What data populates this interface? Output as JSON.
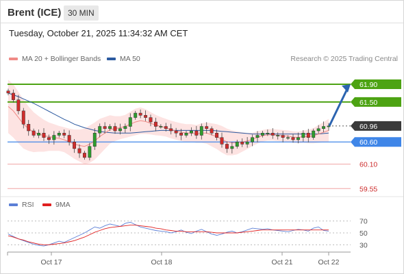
{
  "header": {
    "instrument": "Brent (ICE)",
    "interval": "30 MIN"
  },
  "timestamp": "Tuesday, October 21, 2025 11:34:32 AM CET",
  "legend": {
    "ma20_label": "MA 20 + Bollinger Bands",
    "ma50_label": "MA 50",
    "source": "Research © 2025 Trading Central",
    "rsi_label": "RSI",
    "ma9_label": "9MA"
  },
  "colors": {
    "ma20": "#f08a86",
    "bollinger_fill": "#fde3e2",
    "ma50": "#2c5aa0",
    "resistance": "#4da313",
    "pivot": "#3f86e8",
    "support": "#f0a3a3",
    "support_text": "#cc2b2b",
    "current": "#3a3a3a",
    "rsi": "#5b7fd6",
    "rsi_ma": "#e02020",
    "candle_up": "#2e9d2e",
    "candle_down": "#d12c2c",
    "arrow": "#2c64b0"
  },
  "chart_data": [
    {
      "type": "line",
      "title": "Brent (ICE) 30 MIN",
      "x_axis_labels": [
        "Oct 17",
        "Oct 18",
        "Oct 21",
        "Oct 22"
      ],
      "ylim": [
        59.4,
        62.1
      ],
      "levels": [
        {
          "name": "resistance-2",
          "value": 61.9,
          "label": "61.90",
          "kind": "resistance"
        },
        {
          "name": "resistance-1",
          "value": 61.5,
          "label": "61.50",
          "kind": "resistance"
        },
        {
          "name": "current-price",
          "value": 60.96,
          "label": "60.96",
          "kind": "current"
        },
        {
          "name": "pivot",
          "value": 60.6,
          "label": "60.60",
          "kind": "pivot"
        },
        {
          "name": "support-1",
          "value": 60.1,
          "label": "60.10",
          "kind": "support"
        },
        {
          "name": "support-2",
          "value": 59.55,
          "label": "59.55",
          "kind": "support"
        }
      ],
      "price_path": [
        61.7,
        61.55,
        61.3,
        61.0,
        60.85,
        60.75,
        60.8,
        60.7,
        60.65,
        60.75,
        60.8,
        60.75,
        60.6,
        60.45,
        60.35,
        60.25,
        60.5,
        60.8,
        60.95,
        60.9,
        60.95,
        60.85,
        60.9,
        60.95,
        61.15,
        61.25,
        61.2,
        61.15,
        61.05,
        60.95,
        60.95,
        60.9,
        60.85,
        60.8,
        60.75,
        60.8,
        60.85,
        60.75,
        60.95,
        60.9,
        60.8,
        60.7,
        60.55,
        60.45,
        60.5,
        60.6,
        60.55,
        60.6,
        60.7,
        60.75,
        60.8,
        60.8,
        60.75,
        60.75,
        60.7,
        60.7,
        60.65,
        60.7,
        60.8,
        60.7,
        60.85,
        60.9,
        60.95,
        60.96
      ],
      "ma20": [
        61.4,
        61.3,
        61.15,
        61.0,
        60.9,
        60.82,
        60.78,
        60.74,
        60.72,
        60.7,
        60.68,
        60.65,
        60.6,
        60.55,
        60.52,
        60.5,
        60.55,
        60.62,
        60.72,
        60.8,
        60.88,
        60.9,
        60.92,
        60.95,
        61.0,
        61.05,
        61.08,
        61.06,
        61.02,
        60.98,
        60.95,
        60.92,
        60.88,
        60.85,
        60.82,
        60.8,
        60.8,
        60.78,
        60.8,
        60.8,
        60.76,
        60.72,
        60.66,
        60.6,
        60.58,
        60.58,
        60.6,
        60.62,
        60.66,
        60.7,
        60.74,
        60.76,
        60.76,
        60.75,
        60.74,
        60.73,
        60.71,
        60.7,
        60.72,
        60.72,
        60.74,
        60.78,
        60.82,
        60.86
      ],
      "ma50": [
        61.7,
        61.66,
        61.62,
        61.57,
        61.52,
        61.47,
        61.41,
        61.35,
        61.29,
        61.23,
        61.17,
        61.11,
        61.06,
        61.0,
        60.96,
        60.92,
        60.89,
        60.86,
        60.84,
        60.82,
        60.81,
        60.8,
        60.8,
        60.8,
        60.8,
        60.81,
        60.82,
        60.83,
        60.84,
        60.85,
        60.86,
        60.86,
        60.86,
        60.86,
        60.86,
        60.86,
        60.86,
        60.86,
        60.86,
        60.86,
        60.86,
        60.85,
        60.84,
        60.83,
        60.82,
        60.81,
        60.8,
        60.79,
        60.78,
        60.78,
        60.78,
        60.78,
        60.78,
        60.78,
        60.78,
        60.78,
        60.78,
        60.78,
        60.78,
        60.78,
        60.78,
        60.78,
        60.79,
        60.8
      ],
      "bollinger_width": [
        0.6,
        0.6,
        0.58,
        0.55,
        0.5,
        0.45,
        0.4,
        0.36,
        0.32,
        0.3,
        0.28,
        0.28,
        0.3,
        0.33,
        0.36,
        0.4,
        0.42,
        0.42,
        0.4,
        0.36,
        0.32,
        0.28,
        0.26,
        0.26,
        0.28,
        0.3,
        0.3,
        0.28,
        0.25,
        0.23,
        0.21,
        0.2,
        0.2,
        0.2,
        0.2,
        0.2,
        0.2,
        0.2,
        0.22,
        0.24,
        0.26,
        0.28,
        0.3,
        0.3,
        0.28,
        0.26,
        0.22,
        0.18,
        0.15,
        0.14,
        0.13,
        0.13,
        0.13,
        0.13,
        0.13,
        0.13,
        0.13,
        0.13,
        0.14,
        0.15,
        0.17,
        0.2,
        0.23,
        0.26
      ]
    },
    {
      "type": "line",
      "title": "RSI",
      "ylim": [
        20,
        80
      ],
      "y_ticks": [
        70,
        50,
        30
      ],
      "series": [
        {
          "name": "RSI",
          "values": [
            48,
            44,
            40,
            37,
            34,
            31,
            29,
            28,
            30,
            33,
            36,
            34,
            38,
            42,
            46,
            50,
            55,
            60,
            58,
            62,
            65,
            63,
            61,
            66,
            68,
            64,
            60,
            58,
            56,
            54,
            53,
            52,
            50,
            52,
            55,
            51,
            49,
            53,
            56,
            52,
            48,
            46,
            48,
            51,
            53,
            50,
            52,
            55,
            58,
            57,
            56,
            57,
            55,
            54,
            53,
            52,
            54,
            56,
            55,
            53,
            58,
            60,
            54,
            53
          ]
        },
        {
          "name": "9MA",
          "values": [
            45,
            43,
            40,
            38,
            35,
            33,
            31,
            30,
            30,
            31,
            32,
            33,
            35,
            37,
            40,
            43,
            47,
            51,
            54,
            57,
            59,
            60,
            61,
            62,
            63,
            63,
            62,
            61,
            60,
            58,
            57,
            55,
            54,
            53,
            53,
            52,
            52,
            52,
            52,
            52,
            51,
            50,
            50,
            50,
            50,
            50,
            51,
            52,
            53,
            54,
            55,
            55,
            55,
            55,
            55,
            55,
            55,
            55,
            55,
            55,
            55,
            55,
            55,
            55
          ]
        }
      ]
    }
  ]
}
